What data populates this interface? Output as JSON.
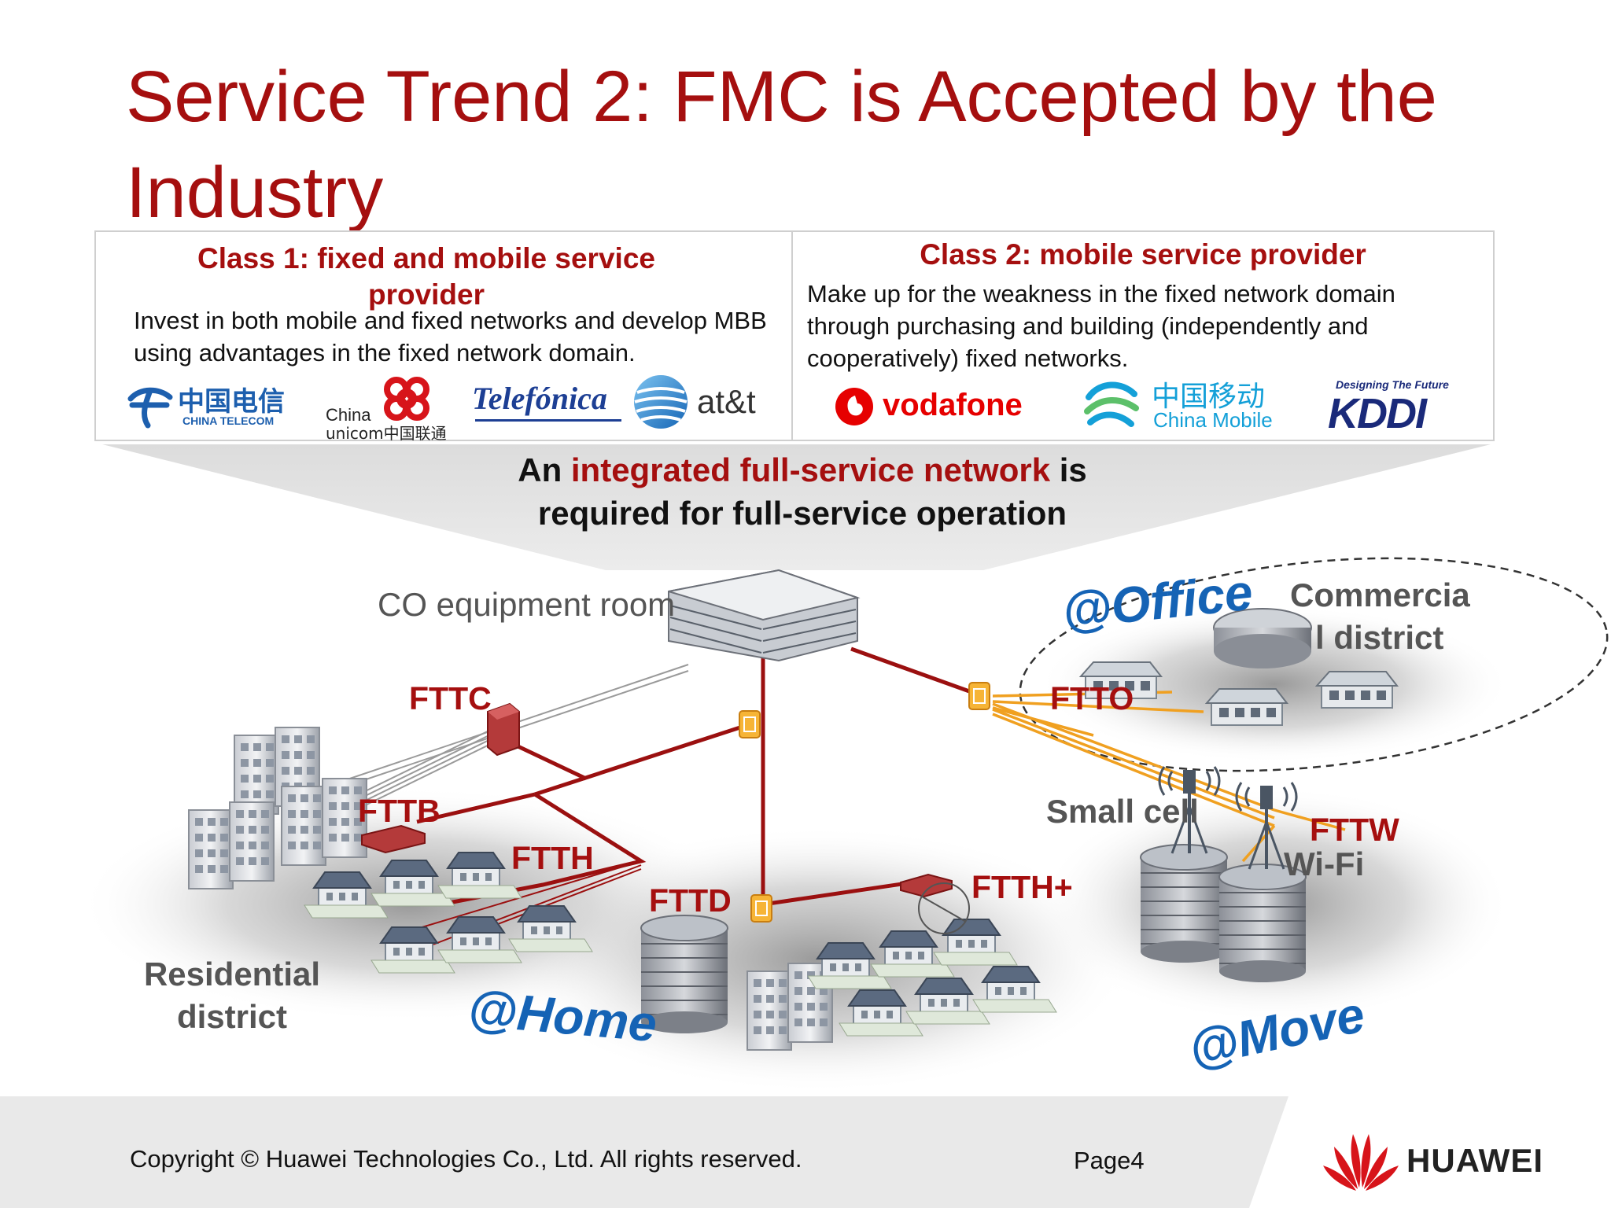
{
  "slide": {
    "title": "Service Trend 2: FMC is Accepted by the Industry"
  },
  "class1": {
    "heading": "Class 1: fixed and mobile service provider",
    "text": "Invest in both mobile and fixed networks and develop MBB using advantages in the fixed network domain.",
    "logos": {
      "china_telecom_cn": "中国电信",
      "china_telecom_en": "CHINA TELECOM",
      "unicom_line1": "China",
      "unicom_line2": "unicom中国联通",
      "telefonica": "Telefónica",
      "att": "at&t"
    }
  },
  "class2": {
    "heading": "Class 2: mobile service provider",
    "text": "Make up for the weakness in the fixed network domain through purchasing and building (independently and cooperatively) fixed networks.",
    "logos": {
      "vodafone": "vodafone",
      "china_mobile_cn": "中国移动",
      "china_mobile_en": "China Mobile",
      "kddi_tagline": "Designing The Future",
      "kddi": "KDDI"
    }
  },
  "callout": {
    "prefix": "An ",
    "highlight": "integrated full-service network",
    "suffix": " is",
    "line2": "required for full-service operation"
  },
  "diagram": {
    "co_label": "CO equipment room",
    "fttc": "FTTC",
    "fttb": "FTTB",
    "ftth": "FTTH",
    "fttd": "FTTD",
    "ftth_plus": "FTTH+",
    "ftto": "FTTO",
    "fttw": "FTTW",
    "wifi": "Wi-Fi",
    "small_cell": "Small cell",
    "commercial_line1": "Commercia",
    "commercial_line2": "l district",
    "residential": "Residential district",
    "home": "@Home",
    "office": "@Office",
    "move": "@Move"
  },
  "footer": {
    "copyright": "Copyright © Huawei Technologies Co., Ltd. All rights reserved.",
    "page": "Page4",
    "brand": "HUAWEI"
  },
  "colors": {
    "title_red": "#a50f0f",
    "link_red": "#9b1010",
    "fiber_orange": "#f0a020",
    "scene_blue": "#1563b5"
  }
}
